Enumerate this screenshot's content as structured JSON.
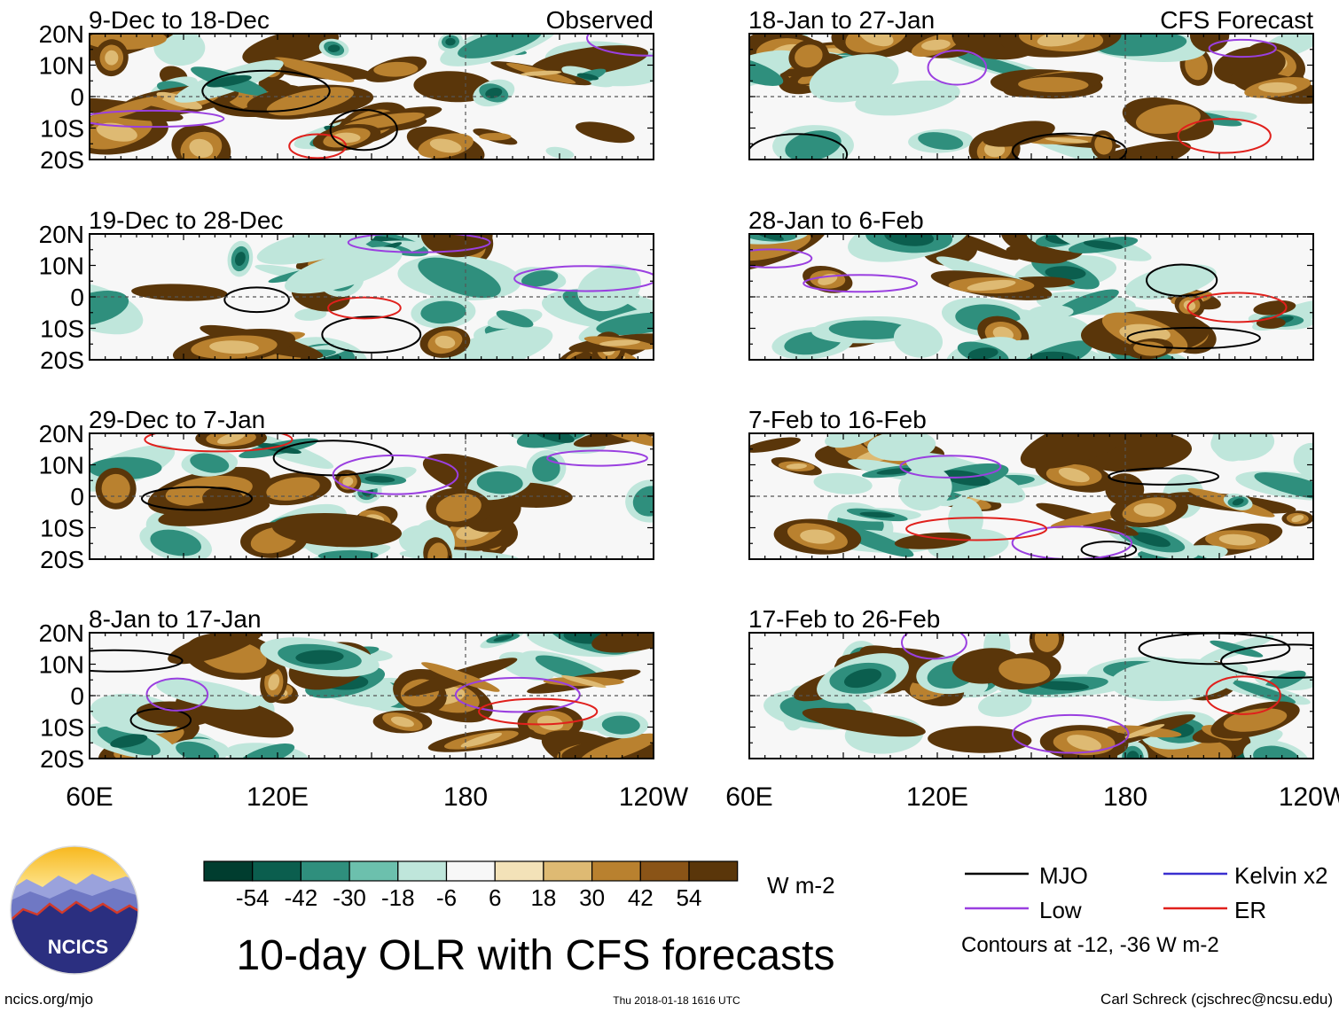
{
  "chart_data": {
    "type": "heatmap",
    "title": "10-day OLR with CFS forecasts",
    "x_ticks": [
      "60E",
      "120E",
      "180",
      "120W"
    ],
    "y_ticks": [
      "20N",
      "10N",
      "0",
      "10S",
      "20S"
    ],
    "observed_label": "Observed",
    "forecast_label": "CFS Forecast",
    "panels": [
      {
        "column": "observed",
        "period": "9-Dec to 18-Dec"
      },
      {
        "column": "observed",
        "period": "19-Dec to 28-Dec"
      },
      {
        "column": "observed",
        "period": "29-Dec to 7-Jan"
      },
      {
        "column": "observed",
        "period": "8-Jan to 17-Jan"
      },
      {
        "column": "forecast",
        "period": "18-Jan to 27-Jan"
      },
      {
        "column": "forecast",
        "period": "28-Jan to 6-Feb"
      },
      {
        "column": "forecast",
        "period": "7-Feb to 16-Feb"
      },
      {
        "column": "forecast",
        "period": "17-Feb to 26-Feb"
      }
    ],
    "colorbar": {
      "unit": "W m-2",
      "tick_labels": [
        "-54",
        "-42",
        "-30",
        "-18",
        "-6",
        "6",
        "18",
        "30",
        "42",
        "54"
      ],
      "colors": [
        "#003d2f",
        "#0b5e4e",
        "#2f8f7d",
        "#6cc0ad",
        "#bfe6db",
        "#f7f7f7",
        "#f3e2b8",
        "#deba73",
        "#b9812f",
        "#8a5417",
        "#5a360a"
      ]
    },
    "legend": {
      "items": [
        {
          "name": "MJO",
          "color": "#000000"
        },
        {
          "name": "Kelvin x2",
          "color": "#3a2fd0"
        },
        {
          "name": "Low",
          "color": "#9a3fe0"
        },
        {
          "name": "ER",
          "color": "#e0201c"
        }
      ],
      "note": "Contours at -12, -36 W m-2"
    }
  },
  "logo_text": "NCICS",
  "footer": {
    "url": "ncics.org/mjo",
    "timestamp": "Thu 2018-01-18 1616 UTC",
    "credit": "Carl Schreck (cjschrec@ncsu.edu)"
  }
}
